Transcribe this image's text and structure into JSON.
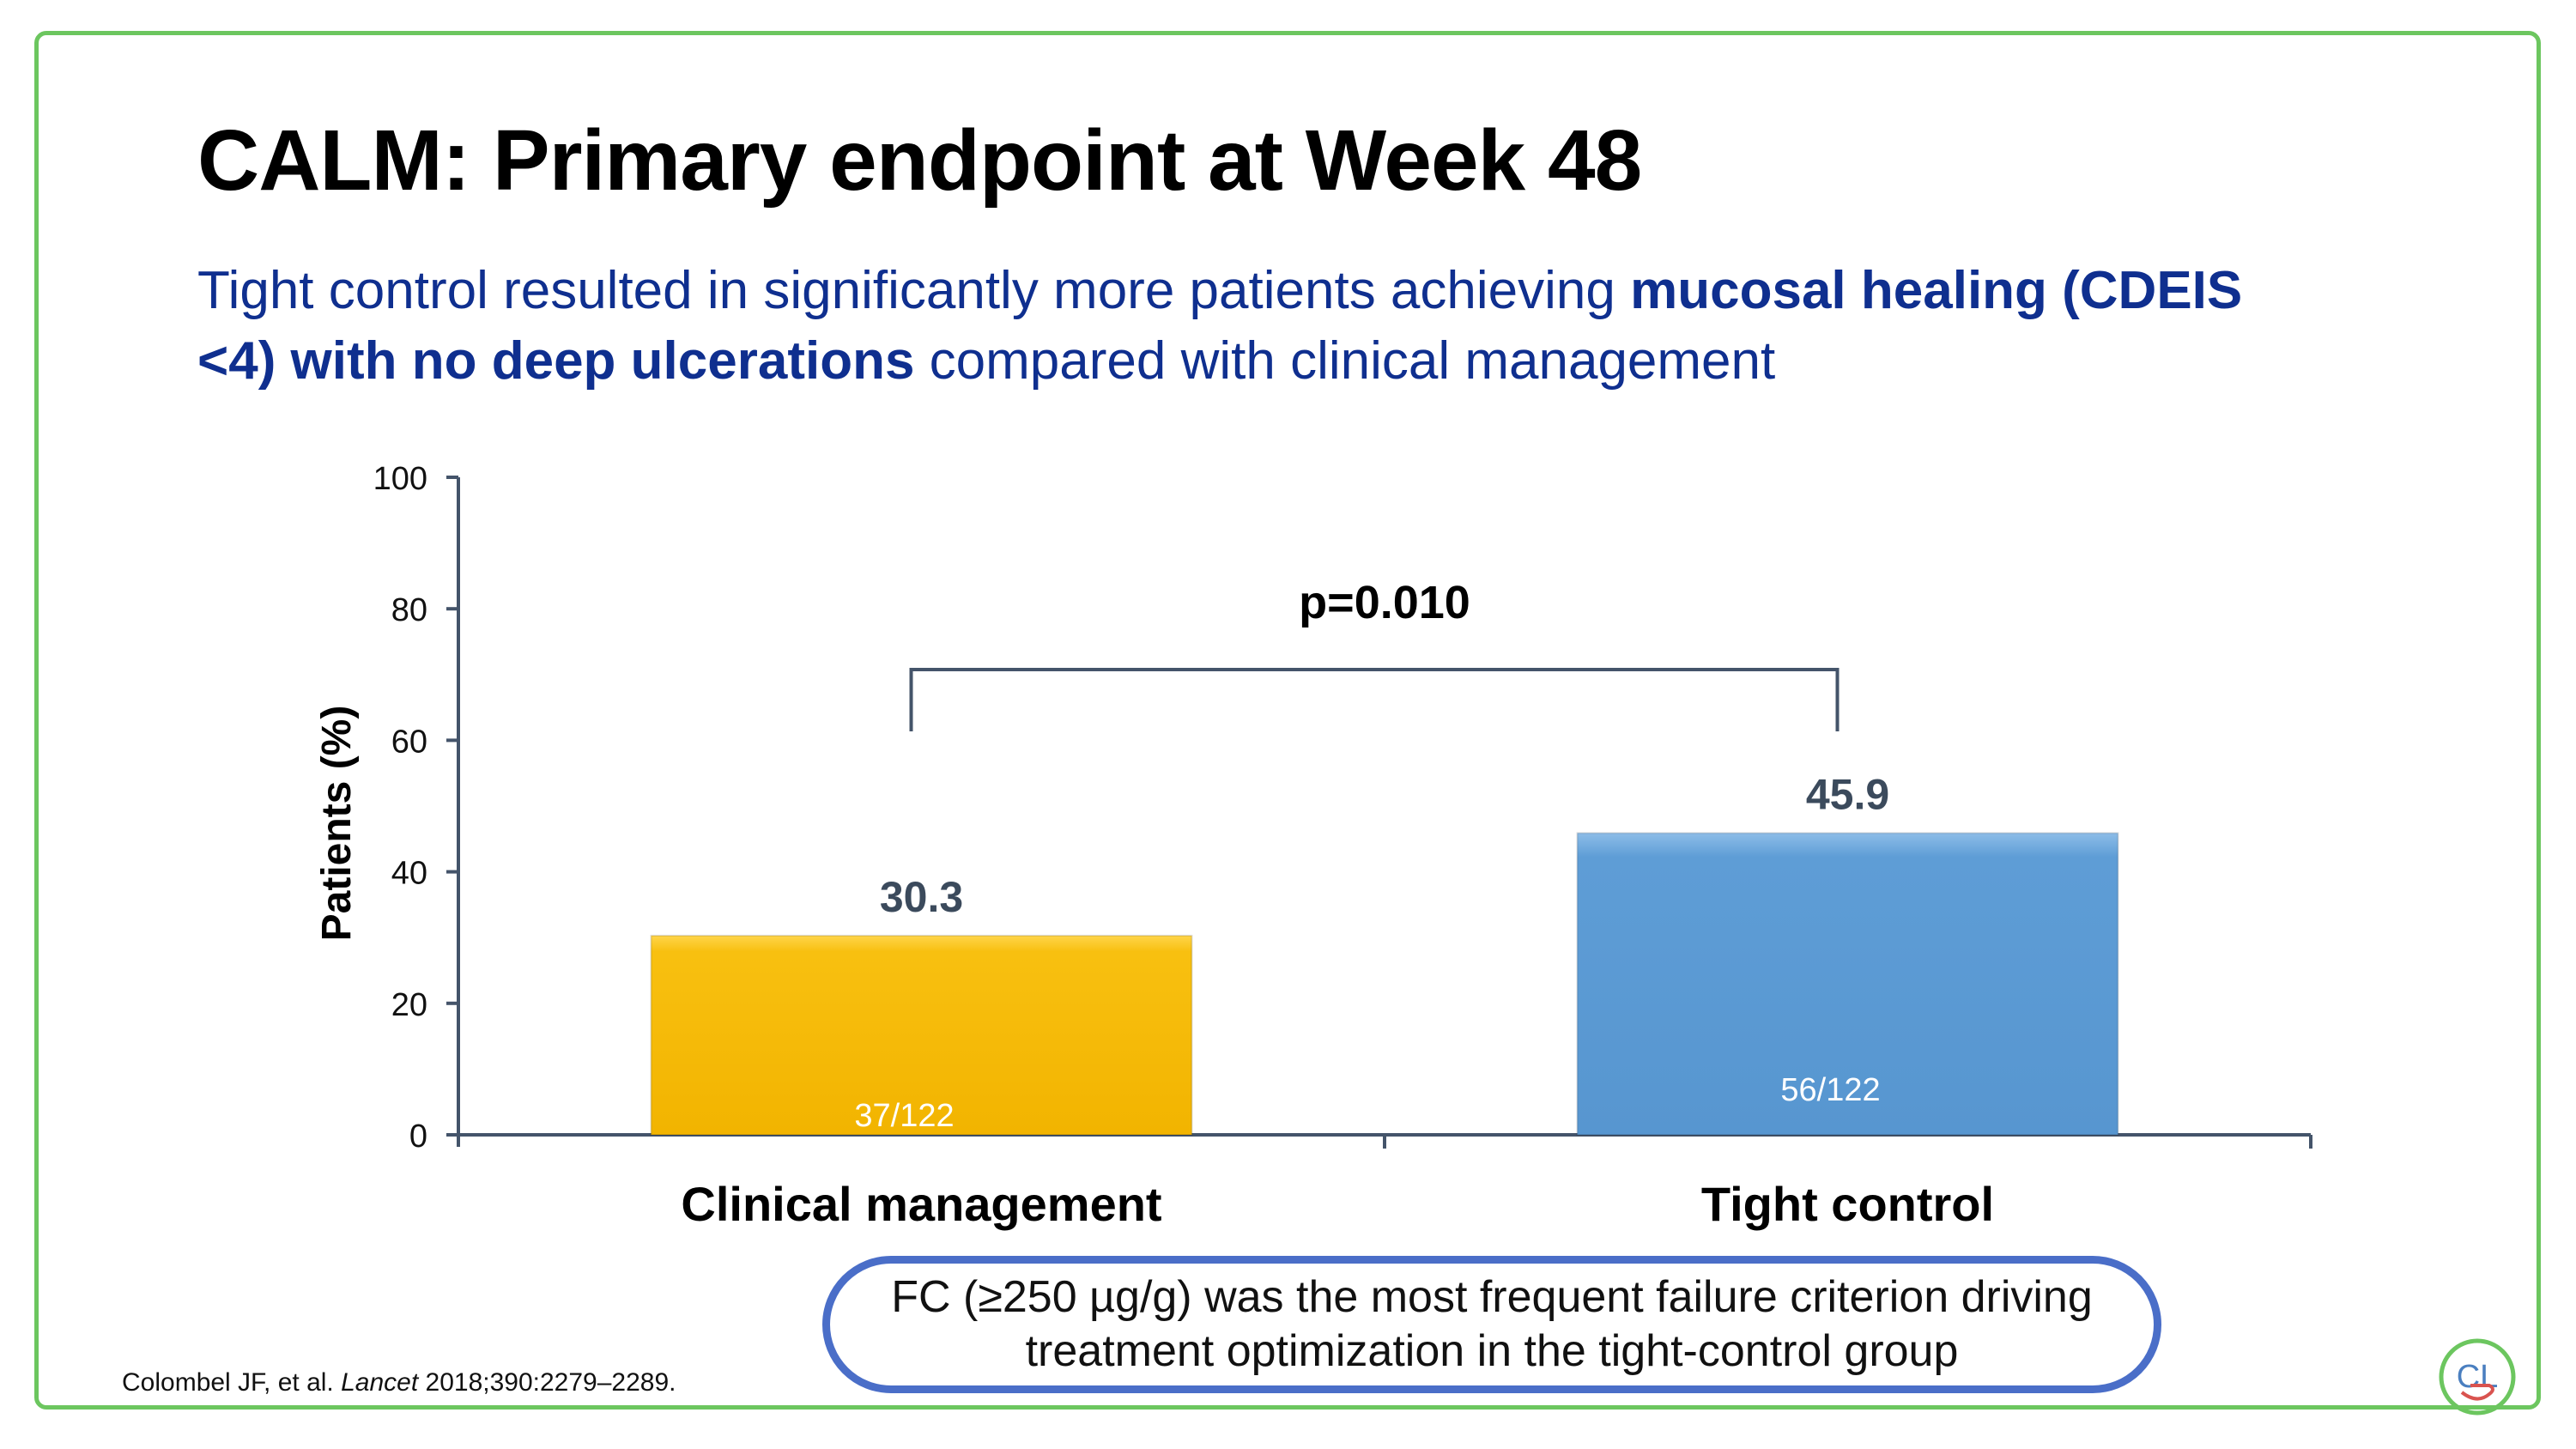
{
  "slide": {
    "title": "CALM: Primary endpoint at Week 48",
    "subtitle_parts": [
      "Tight control resulted in significantly more patients achieving ",
      "mucosal healing (CDEIS <4) with no deep ulcerations",
      " compared with clinical management"
    ],
    "callout": "FC (≥250 µg/g) was the most frequent failure criterion driving treatment optimization in the tight-control group",
    "citation": {
      "authors": "Colombel JF, et al. ",
      "journal": "Lancet",
      "details": " 2018;390:2279–2289."
    },
    "logo_text": "CL",
    "colors": {
      "frame": "#6cc65f",
      "title": "#000000",
      "subtitle": "#0f2f8f",
      "callout_border": "#4a6ec8"
    }
  },
  "chart_data": {
    "type": "bar",
    "title": "",
    "xlabel": "",
    "ylabel": "Patients (%)",
    "ylim": [
      0,
      100
    ],
    "yticks": [
      0,
      20,
      40,
      60,
      80,
      100
    ],
    "categories": [
      "Clinical management",
      "Tight control"
    ],
    "values": [
      30.3,
      45.9
    ],
    "value_labels": [
      "30.3",
      "45.9"
    ],
    "inner_labels": [
      "37/122",
      "56/122"
    ],
    "bar_colors": [
      "#f8bf0e",
      "#5b9bd5"
    ],
    "significance": {
      "label": "p=0.010",
      "between": [
        0,
        1
      ],
      "bracket_y": 70
    },
    "grid": false
  }
}
